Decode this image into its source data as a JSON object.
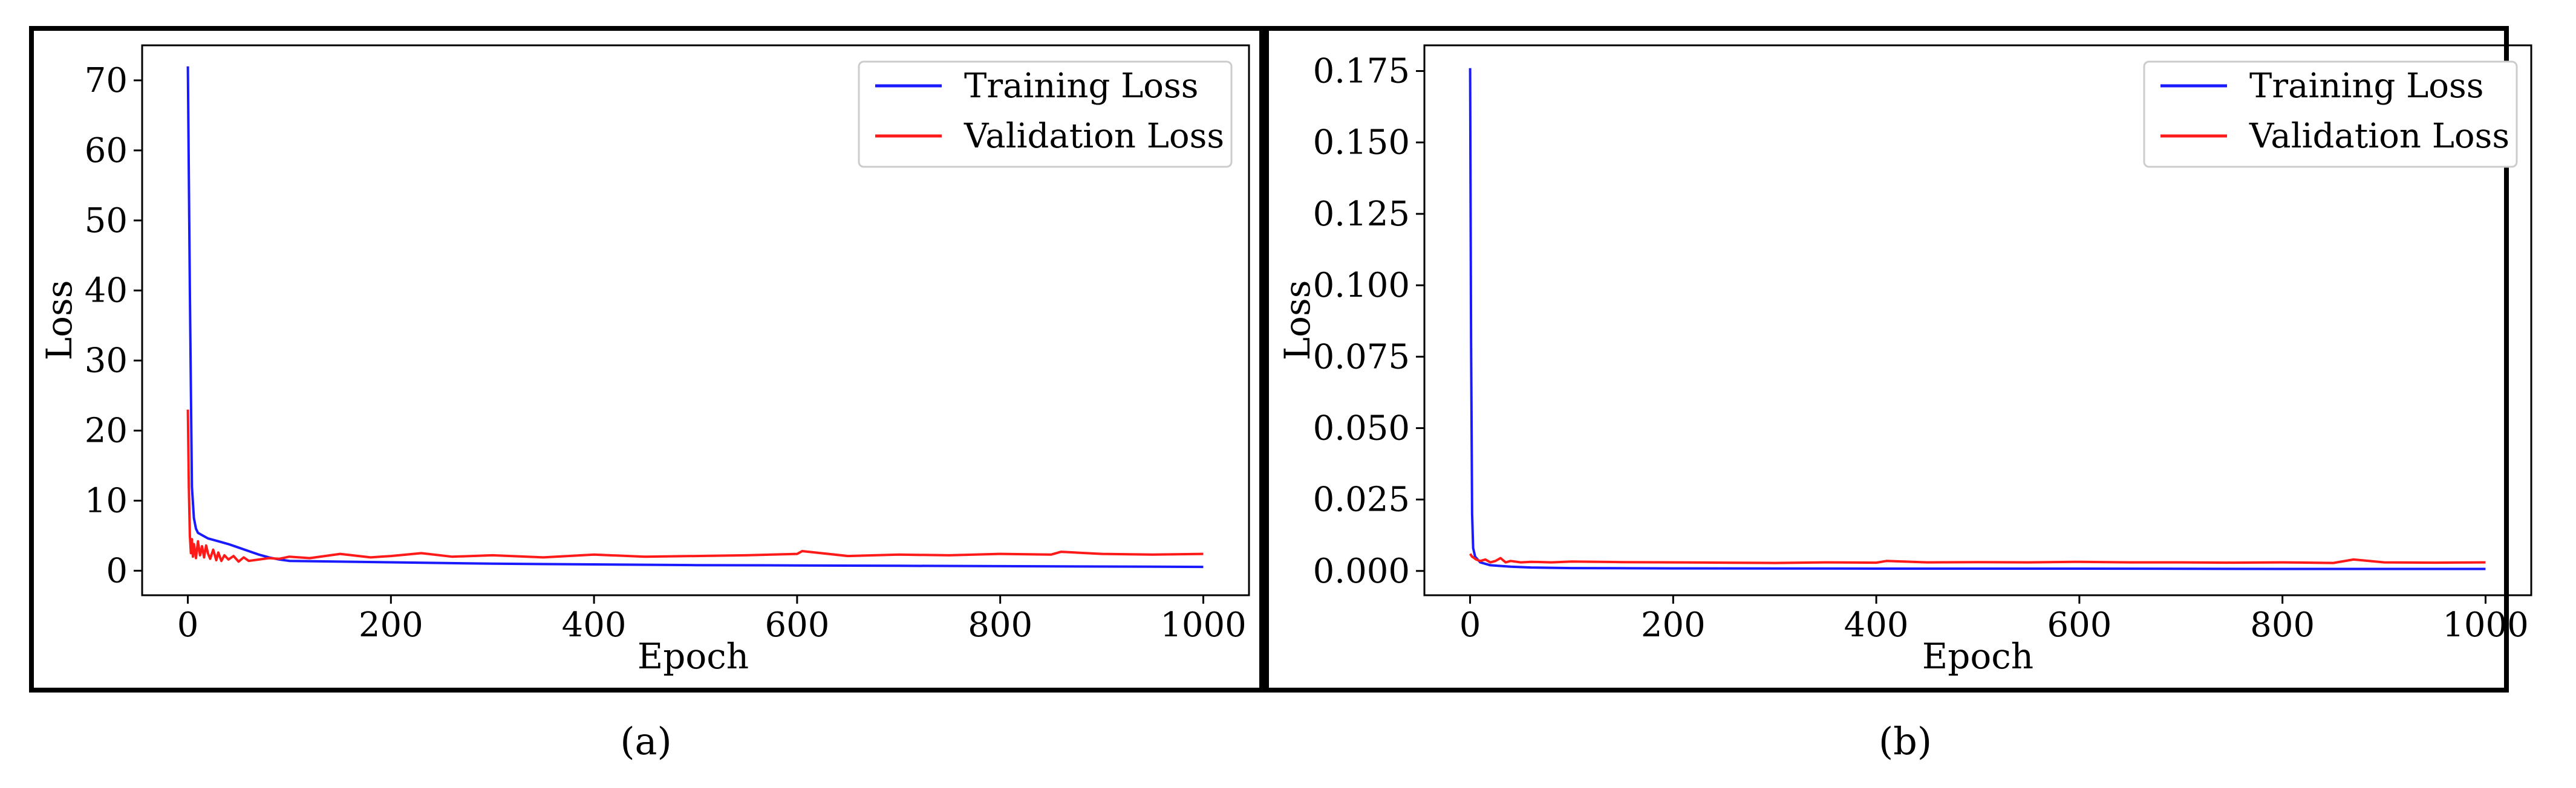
{
  "colors": {
    "training": "#1a1aff",
    "validation": "#ff1a1a",
    "frame": "#000000"
  },
  "chart_data": [
    {
      "type": "line",
      "caption": "(a)",
      "xlabel": "Epoch",
      "ylabel": "Loss",
      "xlim": [
        -45,
        1045
      ],
      "ylim": [
        -3.5,
        75
      ],
      "xticks": [
        0,
        200,
        400,
        600,
        800,
        1000
      ],
      "xtick_labels": [
        "0",
        "200",
        "400",
        "600",
        "800",
        "1000"
      ],
      "yticks": [
        0,
        10,
        20,
        30,
        40,
        50,
        60,
        70
      ],
      "ytick_labels": [
        "0",
        "10",
        "20",
        "30",
        "40",
        "50",
        "60",
        "70"
      ],
      "legend": {
        "position": "top-right",
        "entries": [
          "Training Loss",
          "Validation Loss"
        ]
      },
      "series": [
        {
          "name": "Training Loss",
          "color": "#1a1aff",
          "x": [
            0,
            2,
            4,
            6,
            8,
            10,
            15,
            20,
            30,
            40,
            50,
            60,
            70,
            80,
            90,
            100,
            150,
            200,
            300,
            400,
            500,
            600,
            700,
            800,
            900,
            1000
          ],
          "values": [
            72,
            40,
            12,
            7.5,
            6.0,
            5.4,
            5.0,
            4.6,
            4.2,
            3.8,
            3.3,
            2.8,
            2.3,
            1.9,
            1.6,
            1.4,
            1.3,
            1.2,
            1.0,
            0.9,
            0.8,
            0.75,
            0.7,
            0.65,
            0.6,
            0.55
          ]
        },
        {
          "name": "Validation Loss",
          "color": "#ff1a1a",
          "x": [
            0,
            1,
            2,
            3,
            4,
            5,
            6,
            8,
            10,
            12,
            14,
            16,
            18,
            20,
            22,
            25,
            28,
            30,
            33,
            36,
            40,
            45,
            50,
            55,
            60,
            70,
            80,
            90,
            100,
            120,
            150,
            180,
            200,
            230,
            260,
            300,
            350,
            400,
            450,
            500,
            550,
            600,
            605,
            650,
            700,
            750,
            800,
            850,
            860,
            900,
            950,
            1000
          ],
          "values": [
            23,
            12,
            5.0,
            2.5,
            4.5,
            2.0,
            3.8,
            1.8,
            4.2,
            2.2,
            3.5,
            1.9,
            3.6,
            2.4,
            1.7,
            3.0,
            1.5,
            2.6,
            1.4,
            2.2,
            1.6,
            2.1,
            1.3,
            1.9,
            1.4,
            1.6,
            1.8,
            1.7,
            2.0,
            1.8,
            2.4,
            1.9,
            2.1,
            2.5,
            2.0,
            2.2,
            1.9,
            2.3,
            2.0,
            2.1,
            2.2,
            2.4,
            2.8,
            2.1,
            2.3,
            2.2,
            2.4,
            2.3,
            2.7,
            2.4,
            2.3,
            2.4
          ]
        }
      ]
    },
    {
      "type": "line",
      "caption": "(b)",
      "xlabel": "Epoch",
      "ylabel": "Loss",
      "xlim": [
        -45,
        1045
      ],
      "ylim": [
        -0.0085,
        0.184
      ],
      "xticks": [
        0,
        200,
        400,
        600,
        800,
        1000
      ],
      "xtick_labels": [
        "0",
        "200",
        "400",
        "600",
        "800",
        "1000"
      ],
      "yticks": [
        0.0,
        0.025,
        0.05,
        0.075,
        0.1,
        0.125,
        0.15,
        0.175
      ],
      "ytick_labels": [
        "0.000",
        "0.025",
        "0.050",
        "0.075",
        "0.100",
        "0.125",
        "0.150",
        "0.175"
      ],
      "legend": {
        "position": "top-right",
        "entries": [
          "Training Loss",
          "Validation Loss"
        ]
      },
      "series": [
        {
          "name": "Training Loss",
          "color": "#1a1aff",
          "x": [
            0,
            1,
            2,
            3,
            5,
            10,
            20,
            40,
            60,
            100,
            200,
            400,
            600,
            800,
            1000
          ],
          "values": [
            0.176,
            0.08,
            0.02,
            0.008,
            0.005,
            0.003,
            0.002,
            0.0015,
            0.0012,
            0.001,
            0.0009,
            0.0008,
            0.0008,
            0.0007,
            0.0007
          ]
        },
        {
          "name": "Validation Loss",
          "color": "#ff1a1a",
          "x": [
            0,
            2,
            4,
            6,
            10,
            15,
            20,
            25,
            30,
            35,
            40,
            50,
            60,
            80,
            100,
            150,
            200,
            250,
            300,
            350,
            400,
            410,
            450,
            500,
            550,
            600,
            650,
            700,
            750,
            800,
            850,
            870,
            900,
            950,
            1000
          ],
          "values": [
            0.006,
            0.005,
            0.0045,
            0.004,
            0.0035,
            0.004,
            0.003,
            0.0035,
            0.0045,
            0.003,
            0.0035,
            0.003,
            0.0032,
            0.003,
            0.0033,
            0.0031,
            0.003,
            0.0029,
            0.0028,
            0.003,
            0.0029,
            0.0035,
            0.003,
            0.0031,
            0.003,
            0.0032,
            0.003,
            0.003,
            0.0029,
            0.003,
            0.0028,
            0.004,
            0.003,
            0.0029,
            0.003
          ]
        }
      ]
    }
  ]
}
